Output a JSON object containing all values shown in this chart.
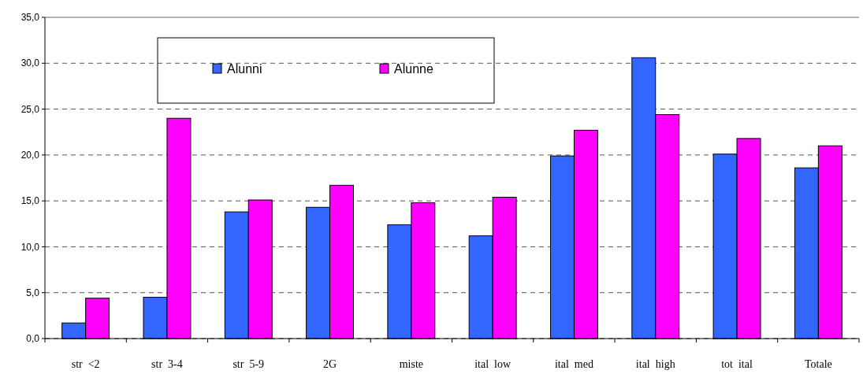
{
  "chart_data": {
    "type": "bar",
    "categories": [
      "str  <2",
      "str  3-4",
      "str  5-9",
      "2G",
      "miste",
      "ital  low",
      "ital  med",
      "ital  high",
      "tot  ital",
      "Totale"
    ],
    "series": [
      {
        "name": "Alunni",
        "color": "#3366ff",
        "values": [
          1.7,
          4.5,
          13.8,
          14.3,
          12.4,
          11.2,
          19.9,
          30.6,
          20.1,
          18.6
        ]
      },
      {
        "name": "Alunne",
        "color": "#ff00ff",
        "values": [
          4.4,
          24.0,
          15.1,
          16.7,
          14.8,
          15.4,
          22.7,
          24.4,
          21.8,
          21.0
        ]
      }
    ],
    "ylim": [
      0,
      35
    ],
    "yticks": [
      {
        "value": 0,
        "label": "0,0"
      },
      {
        "value": 5,
        "label": "5,0"
      },
      {
        "value": 10,
        "label": "10,0"
      },
      {
        "value": 15,
        "label": "15,0"
      },
      {
        "value": 20,
        "label": "20,0"
      },
      {
        "value": 25,
        "label": "25,0"
      },
      {
        "value": 30,
        "label": "30,0"
      },
      {
        "value": 35,
        "label": "35,0"
      }
    ],
    "grid": "y",
    "legend": "top left"
  }
}
